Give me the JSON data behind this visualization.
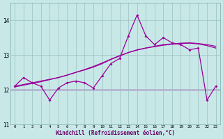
{
  "background_color": "#c8e8e8",
  "grid_color": "#9bbfbf",
  "line_color": "#990099",
  "hours": [
    0,
    1,
    2,
    3,
    4,
    5,
    6,
    7,
    8,
    9,
    10,
    11,
    12,
    13,
    14,
    15,
    16,
    17,
    18,
    19,
    20,
    21,
    22,
    23
  ],
  "temp": [
    12.1,
    12.35,
    12.2,
    12.1,
    11.7,
    12.05,
    12.2,
    12.25,
    12.2,
    12.05,
    12.4,
    12.75,
    12.9,
    13.55,
    14.15,
    13.55,
    13.3,
    13.5,
    13.35,
    13.3,
    13.15,
    13.2,
    11.7,
    12.1
  ],
  "trend1": [
    12.1,
    12.15,
    12.2,
    12.25,
    12.3,
    12.35,
    12.42,
    12.5,
    12.57,
    12.65,
    12.75,
    12.87,
    12.97,
    13.07,
    13.15,
    13.2,
    13.25,
    13.3,
    13.32,
    13.34,
    13.35,
    13.33,
    13.3,
    13.25
  ],
  "trend2": [
    12.08,
    12.13,
    12.18,
    12.23,
    12.29,
    12.35,
    12.42,
    12.5,
    12.58,
    12.67,
    12.77,
    12.88,
    12.98,
    13.07,
    13.14,
    13.2,
    13.24,
    13.28,
    13.31,
    13.33,
    13.34,
    13.32,
    13.27,
    13.2
  ],
  "hline_y": 12.0,
  "ymin": 11.0,
  "ymax": 14.5,
  "yticks": [
    11,
    12,
    13,
    14
  ],
  "xlabel": "Windchill (Refroidissement éolien,°C)"
}
